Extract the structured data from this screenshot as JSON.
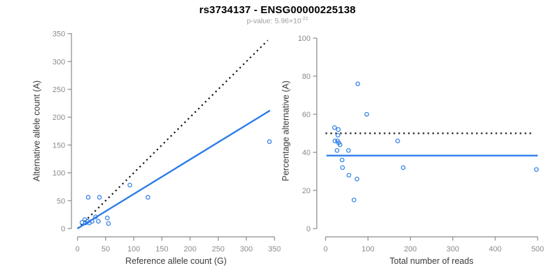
{
  "header": {
    "title": "rs3734137 - ENSG00000225138",
    "pvalue_prefix": "p-value: 5.96×10",
    "pvalue_exponent": "-21"
  },
  "colors": {
    "accent_blue": "#2b7ce9",
    "dotted_black": "#111111",
    "axis_line": "#8a8a8a",
    "tick_label": "#8a8a8a",
    "axis_title": "#3a3a3a",
    "title": "#000000",
    "subtitle": "#9e9e9e",
    "background": "#ffffff"
  },
  "chart_data": [
    {
      "type": "scatter",
      "name": "allele-counts-scatter",
      "xlabel": "Reference allele count (G)",
      "ylabel": "Alternative allele count (A)",
      "xlim": [
        0,
        350
      ],
      "ylim": [
        0,
        350
      ],
      "xticks": [
        0,
        50,
        100,
        150,
        200,
        250,
        300,
        350
      ],
      "yticks": [
        0,
        50,
        100,
        150,
        200,
        250,
        300,
        350
      ],
      "grid": false,
      "legend": "none",
      "points": [
        [
          8,
          11
        ],
        [
          13,
          16
        ],
        [
          14,
          10
        ],
        [
          18,
          13
        ],
        [
          21,
          10
        ],
        [
          26,
          13
        ],
        [
          32,
          21
        ],
        [
          37,
          13
        ],
        [
          53,
          19
        ],
        [
          55,
          9
        ],
        [
          19,
          56
        ],
        [
          39,
          56
        ],
        [
          93,
          78
        ],
        [
          125,
          56
        ],
        [
          341,
          156
        ]
      ],
      "lines": [
        {
          "name": "identity-line",
          "style": "dotted",
          "color": "#111111",
          "x1": 0,
          "y1": 0,
          "x2": 338,
          "y2": 338
        },
        {
          "name": "regression-line",
          "style": "solid",
          "color": "#2b7ce9",
          "x1": 0,
          "y1": 0,
          "x2": 342,
          "y2": 212
        }
      ]
    },
    {
      "type": "scatter",
      "name": "percentage-vs-reads-scatter",
      "xlabel": "Total number of reads",
      "ylabel": "Percentage alternative (A)",
      "xlim": [
        0,
        500
      ],
      "ylim": [
        0,
        100
      ],
      "xticks": [
        0,
        100,
        200,
        300,
        400,
        500
      ],
      "yticks": [
        0,
        20,
        40,
        60,
        80,
        100
      ],
      "grid": false,
      "legend": "none",
      "points": [
        [
          21,
          53
        ],
        [
          30,
          52
        ],
        [
          29,
          49
        ],
        [
          22,
          46
        ],
        [
          28,
          46
        ],
        [
          31,
          45
        ],
        [
          34,
          44
        ],
        [
          27,
          41
        ],
        [
          54,
          41
        ],
        [
          39,
          36
        ],
        [
          40,
          32
        ],
        [
          55,
          28
        ],
        [
          74,
          26
        ],
        [
          67,
          15
        ],
        [
          76,
          76
        ],
        [
          97,
          60
        ],
        [
          170,
          46
        ],
        [
          183,
          32
        ],
        [
          497,
          31
        ]
      ],
      "lines": [
        {
          "name": "fifty-percent-line",
          "style": "dotted",
          "color": "#111111",
          "x1": 0,
          "y1": 50,
          "x2": 490,
          "y2": 50
        },
        {
          "name": "mean-percentage-line",
          "style": "solid",
          "color": "#2b7ce9",
          "x1": 2,
          "y1": 38.3,
          "x2": 500,
          "y2": 38.3
        }
      ]
    }
  ]
}
